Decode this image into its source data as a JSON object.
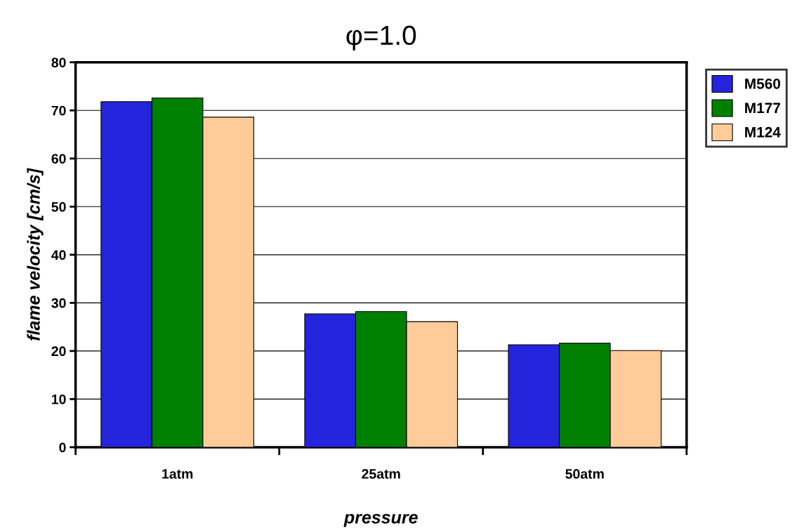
{
  "chart_data": {
    "type": "bar",
    "title": "φ=1.0",
    "xlabel": "pressure",
    "ylabel": "flame velocity [cm/s]",
    "categories": [
      "1atm",
      "25atm",
      "50atm"
    ],
    "series": [
      {
        "name": "M560",
        "color": "#2424dc",
        "values": [
          71.8,
          27.7,
          21.3
        ]
      },
      {
        "name": "M177",
        "color": "#008000",
        "values": [
          72.6,
          28.2,
          21.6
        ]
      },
      {
        "name": "M124",
        "color": "#ffcc99",
        "values": [
          68.6,
          26.1,
          20.1
        ]
      }
    ],
    "ylim": [
      0,
      80
    ],
    "yticks": [
      0,
      10,
      20,
      30,
      40,
      50,
      60,
      70,
      80
    ],
    "grid": "y",
    "legend": "top right"
  }
}
